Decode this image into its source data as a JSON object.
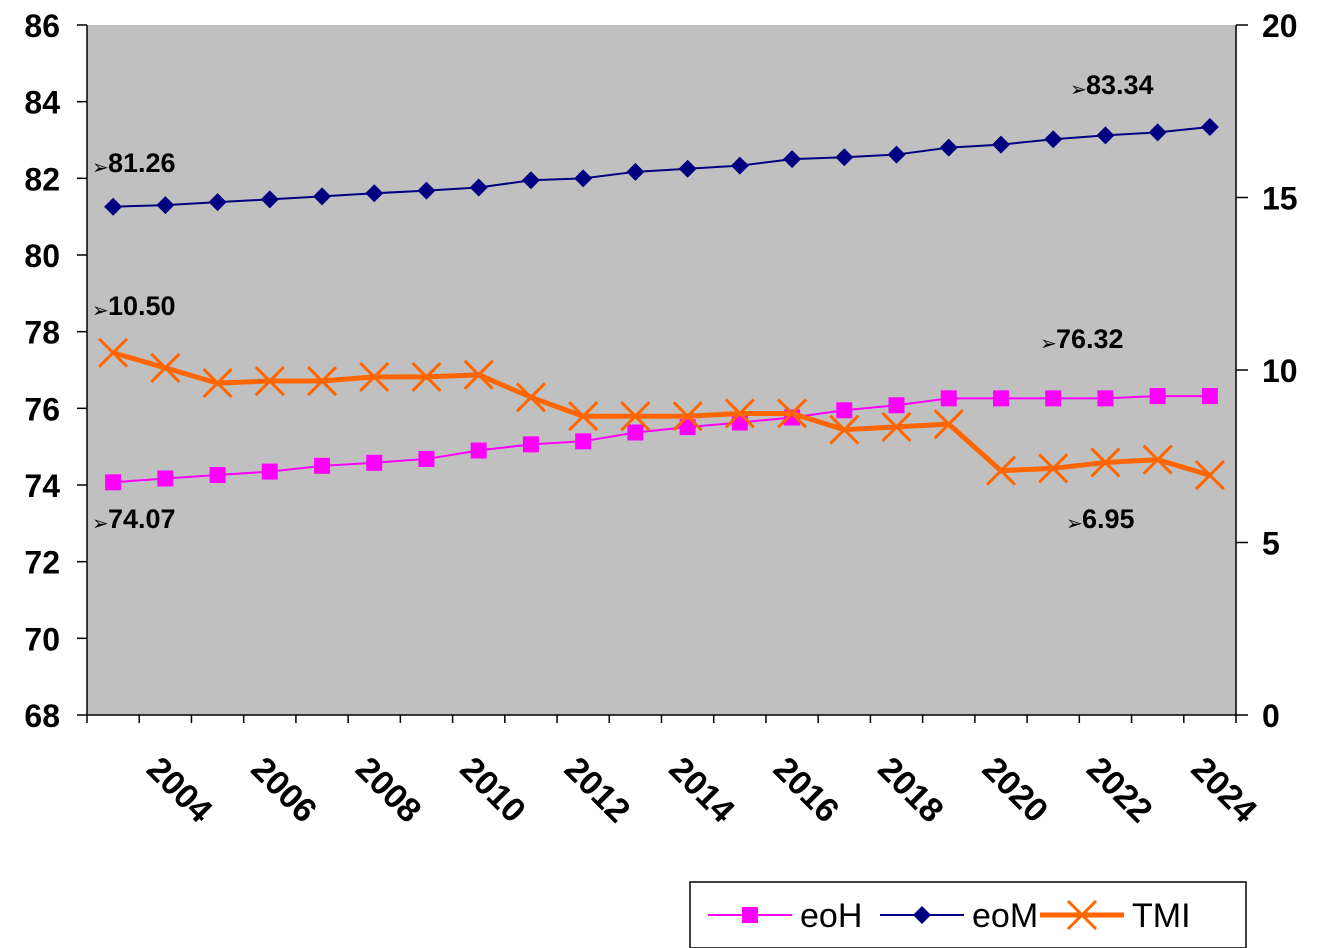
{
  "chart_data": {
    "type": "line",
    "title": "",
    "xlabel": "",
    "ylabel": "",
    "x": [
      2003,
      2004,
      2005,
      2006,
      2007,
      2008,
      2009,
      2010,
      2011,
      2012,
      2013,
      2014,
      2015,
      2016,
      2017,
      2018,
      2019,
      2020,
      2021,
      2022,
      2023,
      2024
    ],
    "x_tick_labels": [
      "2004",
      "2006",
      "2008",
      "2010",
      "2012",
      "2014",
      "2016",
      "2018",
      "2020",
      "2022",
      "2024"
    ],
    "y_left": {
      "range": [
        68,
        86
      ],
      "ticks": [
        "68",
        "70",
        "72",
        "74",
        "76",
        "78",
        "80",
        "82",
        "84",
        "86"
      ]
    },
    "y_right": {
      "range": [
        0,
        20
      ],
      "ticks": [
        "0",
        "5",
        "10",
        "15",
        "20"
      ]
    },
    "plot_background": "#c0c0c0",
    "grid": false,
    "legend_position": "bottom-right",
    "series": [
      {
        "name": "eoH",
        "axis": "left",
        "color": "#ff00ff",
        "marker": "square",
        "values": [
          74.07,
          74.17,
          74.26,
          74.35,
          74.5,
          74.58,
          74.68,
          74.9,
          75.06,
          75.14,
          75.37,
          75.51,
          75.63,
          75.76,
          75.95,
          76.08,
          76.26,
          76.26,
          76.26,
          76.26,
          76.32,
          76.32
        ]
      },
      {
        "name": "eoM",
        "axis": "left",
        "color": "#000080",
        "marker": "diamond",
        "values": [
          81.26,
          81.3,
          81.38,
          81.45,
          81.53,
          81.61,
          81.68,
          81.76,
          81.95,
          82.0,
          82.17,
          82.25,
          82.33,
          82.5,
          82.55,
          82.62,
          82.8,
          82.88,
          83.02,
          83.12,
          83.2,
          83.34
        ]
      },
      {
        "name": "TMI",
        "axis": "right",
        "color": "#ff6600",
        "marker": "x",
        "values": [
          10.5,
          10.06,
          9.62,
          9.68,
          9.68,
          9.8,
          9.8,
          9.86,
          9.21,
          8.66,
          8.66,
          8.66,
          8.74,
          8.74,
          8.27,
          8.35,
          8.43,
          7.08,
          7.15,
          7.32,
          7.4,
          6.95
        ]
      }
    ],
    "annotations": [
      {
        "text": "81.26",
        "series": "eoM"
      },
      {
        "text": "83.34",
        "series": "eoM"
      },
      {
        "text": "10.50",
        "series": "TMI"
      },
      {
        "text": "76.32",
        "series": "eoH"
      },
      {
        "text": "74.07",
        "series": "eoH"
      },
      {
        "text": "6.95",
        "series": "TMI"
      }
    ],
    "annotation_arrow": "➢"
  }
}
